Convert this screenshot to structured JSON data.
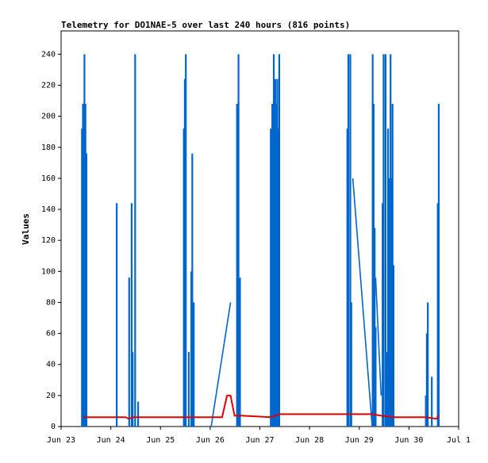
{
  "chart_data": {
    "type": "line",
    "title": "Telemetry for DO1NAE-5 over last 240 hours (816 points)",
    "ylabel": "Values",
    "xlabel": "",
    "ylim": [
      0,
      255
    ],
    "yticks": [
      0,
      20,
      40,
      60,
      80,
      100,
      120,
      140,
      160,
      180,
      200,
      220,
      240
    ],
    "xlim": [
      0,
      8.0
    ],
    "xticks": [
      {
        "x": 0,
        "label": "Jun 23"
      },
      {
        "x": 1,
        "label": "Jun 24"
      },
      {
        "x": 2,
        "label": "Jun 25"
      },
      {
        "x": 3,
        "label": "Jun 26"
      },
      {
        "x": 4,
        "label": "Jun 27"
      },
      {
        "x": 5,
        "label": "Jun 28"
      },
      {
        "x": 6,
        "label": "Jun 29"
      },
      {
        "x": 7,
        "label": "Jun 30"
      },
      {
        "x": 8,
        "label": "Jul 1"
      }
    ],
    "grid": false,
    "legend": "none",
    "series": [
      {
        "color": "#0066cc",
        "style": "spikes",
        "spikes": [
          {
            "x": 0.42,
            "y": 192
          },
          {
            "x": 0.44,
            "y": 208
          },
          {
            "x": 0.47,
            "y": 240
          },
          {
            "x": 0.49,
            "y": 208
          },
          {
            "x": 0.51,
            "y": 176
          },
          {
            "x": 1.12,
            "y": 144
          },
          {
            "x": 1.37,
            "y": 96
          },
          {
            "x": 1.42,
            "y": 144
          },
          {
            "x": 1.44,
            "y": 48
          },
          {
            "x": 1.49,
            "y": 240
          },
          {
            "x": 1.55,
            "y": 16
          },
          {
            "x": 2.47,
            "y": 192
          },
          {
            "x": 2.49,
            "y": 224
          },
          {
            "x": 2.51,
            "y": 240
          },
          {
            "x": 2.57,
            "y": 48
          },
          {
            "x": 2.62,
            "y": 100
          },
          {
            "x": 2.64,
            "y": 176
          },
          {
            "x": 2.67,
            "y": 80
          },
          {
            "x": 3.54,
            "y": 208
          },
          {
            "x": 3.57,
            "y": 240
          },
          {
            "x": 3.6,
            "y": 96
          },
          {
            "x": 4.22,
            "y": 192
          },
          {
            "x": 4.25,
            "y": 208
          },
          {
            "x": 4.28,
            "y": 240
          },
          {
            "x": 4.31,
            "y": 224
          },
          {
            "x": 4.33,
            "y": 208
          },
          {
            "x": 4.35,
            "y": 224
          },
          {
            "x": 4.37,
            "y": 192
          },
          {
            "x": 4.39,
            "y": 240
          },
          {
            "x": 5.76,
            "y": 192
          },
          {
            "x": 5.78,
            "y": 240
          },
          {
            "x": 5.82,
            "y": 240
          },
          {
            "x": 5.84,
            "y": 80
          },
          {
            "x": 6.27,
            "y": 240
          },
          {
            "x": 6.29,
            "y": 208
          },
          {
            "x": 6.31,
            "y": 128
          },
          {
            "x": 6.33,
            "y": 64
          },
          {
            "x": 6.47,
            "y": 144
          },
          {
            "x": 6.49,
            "y": 240
          },
          {
            "x": 6.53,
            "y": 240
          },
          {
            "x": 6.56,
            "y": 48
          },
          {
            "x": 6.58,
            "y": 192
          },
          {
            "x": 6.6,
            "y": 160
          },
          {
            "x": 6.63,
            "y": 240
          },
          {
            "x": 6.65,
            "y": 160
          },
          {
            "x": 6.67,
            "y": 208
          },
          {
            "x": 6.69,
            "y": 104
          },
          {
            "x": 7.34,
            "y": 20
          },
          {
            "x": 7.36,
            "y": 60
          },
          {
            "x": 7.38,
            "y": 80
          },
          {
            "x": 7.46,
            "y": 32
          },
          {
            "x": 7.58,
            "y": 144
          },
          {
            "x": 7.6,
            "y": 208
          }
        ],
        "connectors": [
          {
            "from": [
              3.02,
              0
            ],
            "to": [
              3.41,
              80
            ]
          },
          {
            "from": [
              5.87,
              160
            ],
            "to": [
              6.26,
              0
            ]
          },
          {
            "from": [
              6.33,
              96
            ],
            "to": [
              6.44,
              20
            ]
          }
        ]
      },
      {
        "color": "#dd0000",
        "style": "line",
        "points": [
          [
            0.44,
            6
          ],
          [
            1.3,
            6
          ],
          [
            1.36,
            5
          ],
          [
            1.44,
            6
          ],
          [
            2.5,
            6
          ],
          [
            2.75,
            6
          ],
          [
            3.02,
            6
          ],
          [
            3.24,
            6
          ],
          [
            3.34,
            20
          ],
          [
            3.41,
            20
          ],
          [
            3.49,
            7
          ],
          [
            3.62,
            7
          ],
          [
            4.22,
            6
          ],
          [
            4.4,
            8
          ],
          [
            5.0,
            8
          ],
          [
            5.76,
            8
          ],
          [
            6.26,
            8
          ],
          [
            6.44,
            7
          ],
          [
            6.69,
            6
          ],
          [
            7.34,
            6
          ],
          [
            7.55,
            5
          ],
          [
            7.6,
            7
          ]
        ]
      }
    ]
  }
}
